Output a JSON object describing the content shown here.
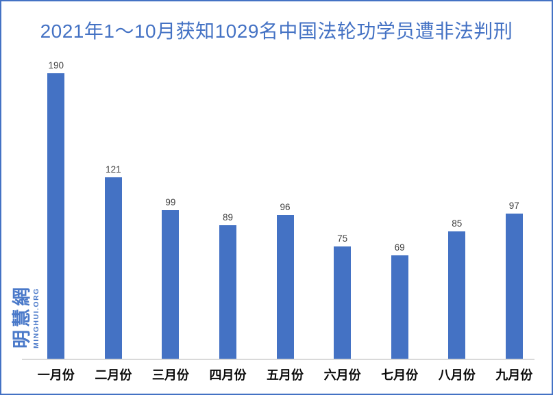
{
  "page": {
    "background": "#ffffff",
    "border_color": "#4472c4"
  },
  "title": {
    "text": "2021年1～10月获知1029名中国法轮功学员遭非法判刑",
    "color": "#4472c4"
  },
  "watermark": {
    "cn": "明慧網",
    "en": "MINGHUI.ORG",
    "color": "#4a79c9"
  },
  "chart_data": {
    "type": "bar",
    "title": "2021年1～10月获知1029名中国法轮功学员遭非法判刑",
    "categories": [
      "一月份",
      "二月份",
      "三月份",
      "四月份",
      "五月份",
      "六月份",
      "七月份",
      "八月份",
      "九月份"
    ],
    "values": [
      190,
      121,
      99,
      89,
      96,
      75,
      69,
      85,
      97
    ],
    "xlabel": "",
    "ylabel": "",
    "ylim": [
      0,
      190
    ],
    "grid": false,
    "legend_position": "none",
    "value_labels_shown": true,
    "bar_color": "#4472c4",
    "value_label_color": "#404040",
    "axis_line_color": "#d9d9d9",
    "category_label_color": "#0a0a0a"
  }
}
